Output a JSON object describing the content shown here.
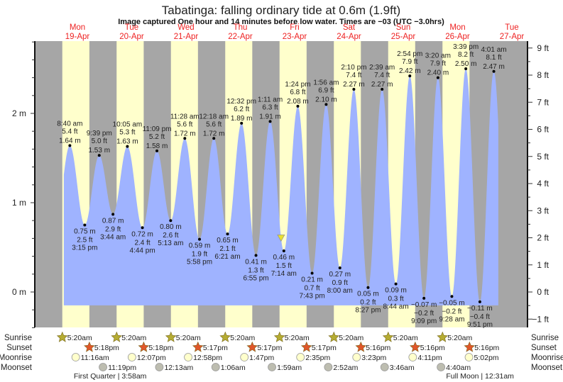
{
  "title": "Tabatinga: falling  ordinary tide at 0.6m (1.9ft)",
  "subtitle": "Image captured One hour and 14 minutes before low water. Times are −03 (UTC −3.0hrs)",
  "colors": {
    "night": "#a6a6a6",
    "day": "#ffffcc",
    "water": "#9fb3ff",
    "day_label": "#ee2222",
    "sunrise_icon": "#b5ac32",
    "sunset_icon": "#e0562a",
    "moonrise_icon": "#ffffcc",
    "moonset_icon": "#bdbdb0",
    "now_marker": "#e8e030"
  },
  "chart_data": {
    "type": "area",
    "title": "Tabatinga: falling  ordinary tide at 0.6m (1.9ft)",
    "days": [
      {
        "weekday": "Mon",
        "date": "19-Apr"
      },
      {
        "weekday": "Tue",
        "date": "20-Apr"
      },
      {
        "weekday": "Wed",
        "date": "21-Apr"
      },
      {
        "weekday": "Thu",
        "date": "22-Apr"
      },
      {
        "weekday": "Fri",
        "date": "23-Apr"
      },
      {
        "weekday": "Sat",
        "date": "24-Apr"
      },
      {
        "weekday": "Sun",
        "date": "25-Apr"
      },
      {
        "weekday": "Mon",
        "date": "26-Apr"
      },
      {
        "weekday": "Tue",
        "date": "27-Apr"
      }
    ],
    "ylim_m": [
      -0.4,
      2.8
    ],
    "left_axis": {
      "unit": "m",
      "ticks": [
        {
          "v": 0,
          "label": "0 m"
        },
        {
          "v": 1,
          "label": "1 m"
        },
        {
          "v": 2,
          "label": "2 m"
        }
      ]
    },
    "right_axis": {
      "unit": "ft",
      "ticks": [
        {
          "v": -1,
          "label": "−1 ft"
        },
        {
          "v": 0,
          "label": "0 ft"
        },
        {
          "v": 1,
          "label": "1 ft"
        },
        {
          "v": 2,
          "label": "2 ft"
        },
        {
          "v": 3,
          "label": "3 ft"
        },
        {
          "v": 4,
          "label": "4 ft"
        },
        {
          "v": 5,
          "label": "5 ft"
        },
        {
          "v": 6,
          "label": "6 ft"
        },
        {
          "v": 7,
          "label": "7 ft"
        },
        {
          "v": 8,
          "label": "8 ft"
        },
        {
          "v": 9,
          "label": "9 ft"
        }
      ]
    },
    "tide_start": {
      "date": "19-Apr",
      "time": "6:00 am"
    },
    "tide_end": {
      "date": "27-Apr",
      "time": "6:00 am"
    },
    "current": {
      "date": "23-Apr",
      "time": "6:00 am",
      "height_m": 0.6
    },
    "extremes": [
      {
        "type": "high",
        "date": "19-Apr",
        "time": "8:40 am",
        "height_m": 1.64,
        "m_label": "1.64 m",
        "ft_label": "5.4 ft"
      },
      {
        "type": "low",
        "date": "19-Apr",
        "time": "3:15 pm",
        "height_m": 0.75,
        "m_label": "0.75 m",
        "ft_label": "2.5 ft"
      },
      {
        "type": "high",
        "date": "19-Apr",
        "time": "9:39 pm",
        "height_m": 1.53,
        "m_label": "1.53 m",
        "ft_label": "5.0 ft"
      },
      {
        "type": "low",
        "date": "20-Apr",
        "time": "3:44 am",
        "height_m": 0.87,
        "m_label": "0.87 m",
        "ft_label": "2.9 ft"
      },
      {
        "type": "high",
        "date": "20-Apr",
        "time": "10:05 am",
        "height_m": 1.63,
        "m_label": "1.63 m",
        "ft_label": "5.3 ft"
      },
      {
        "type": "low",
        "date": "20-Apr",
        "time": "4:44 pm",
        "height_m": 0.72,
        "m_label": "0.72 m",
        "ft_label": "2.4 ft"
      },
      {
        "type": "high",
        "date": "20-Apr",
        "time": "11:09 pm",
        "height_m": 1.58,
        "m_label": "1.58 m",
        "ft_label": "5.2 ft"
      },
      {
        "type": "low",
        "date": "21-Apr",
        "time": "5:13 am",
        "height_m": 0.8,
        "m_label": "0.80 m",
        "ft_label": "2.6 ft"
      },
      {
        "type": "high",
        "date": "21-Apr",
        "time": "11:28 am",
        "height_m": 1.72,
        "m_label": "1.72 m",
        "ft_label": "5.6 ft"
      },
      {
        "type": "low",
        "date": "21-Apr",
        "time": "5:58 pm",
        "height_m": 0.59,
        "m_label": "0.59 m",
        "ft_label": "1.9 ft"
      },
      {
        "type": "high",
        "date": "22-Apr",
        "time": "12:18 am",
        "height_m": 1.72,
        "m_label": "1.72 m",
        "ft_label": "5.6 ft"
      },
      {
        "type": "low",
        "date": "22-Apr",
        "time": "6:21 am",
        "height_m": 0.65,
        "m_label": "0.65 m",
        "ft_label": "2.1 ft"
      },
      {
        "type": "high",
        "date": "22-Apr",
        "time": "12:32 pm",
        "height_m": 1.89,
        "m_label": "1.89 m",
        "ft_label": "6.2 ft"
      },
      {
        "type": "low",
        "date": "22-Apr",
        "time": "6:55 pm",
        "height_m": 0.41,
        "m_label": "0.41 m",
        "ft_label": "1.3 ft"
      },
      {
        "type": "high",
        "date": "23-Apr",
        "time": "1:11 am",
        "height_m": 1.91,
        "m_label": "1.91 m",
        "ft_label": "6.3 ft"
      },
      {
        "type": "low",
        "date": "23-Apr",
        "time": "7:14 am",
        "height_m": 0.46,
        "m_label": "0.46 m",
        "ft_label": "1.5 ft"
      },
      {
        "type": "high",
        "date": "23-Apr",
        "time": "1:24 pm",
        "height_m": 2.08,
        "m_label": "2.08 m",
        "ft_label": "6.8 ft"
      },
      {
        "type": "low",
        "date": "23-Apr",
        "time": "7:43 pm",
        "height_m": 0.21,
        "m_label": "0.21 m",
        "ft_label": "0.7 ft"
      },
      {
        "type": "high",
        "date": "24-Apr",
        "time": "1:56 am",
        "height_m": 2.1,
        "m_label": "2.10 m",
        "ft_label": "6.9 ft"
      },
      {
        "type": "low",
        "date": "24-Apr",
        "time": "8:00 am",
        "height_m": 0.27,
        "m_label": "0.27 m",
        "ft_label": "0.9 ft"
      },
      {
        "type": "high",
        "date": "24-Apr",
        "time": "2:10 pm",
        "height_m": 2.27,
        "m_label": "2.27 m",
        "ft_label": "7.4 ft"
      },
      {
        "type": "low",
        "date": "24-Apr",
        "time": "8:27 pm",
        "height_m": 0.05,
        "m_label": "0.05 m",
        "ft_label": "0.2 ft"
      },
      {
        "type": "high",
        "date": "25-Apr",
        "time": "2:39 am",
        "height_m": 2.27,
        "m_label": "2.27 m",
        "ft_label": "7.4 ft"
      },
      {
        "type": "low",
        "date": "25-Apr",
        "time": "8:44 am",
        "height_m": 0.09,
        "m_label": "0.09 m",
        "ft_label": "0.3 ft"
      },
      {
        "type": "high",
        "date": "25-Apr",
        "time": "2:54 pm",
        "height_m": 2.42,
        "m_label": "2.42 m",
        "ft_label": "7.9 ft"
      },
      {
        "type": "low",
        "date": "25-Apr",
        "time": "9:09 pm",
        "height_m": -0.07,
        "m_label": "−0.07 m",
        "ft_label": "−0.2 ft"
      },
      {
        "type": "high",
        "date": "26-Apr",
        "time": "3:20 am",
        "height_m": 2.4,
        "m_label": "2.40 m",
        "ft_label": "7.9 ft"
      },
      {
        "type": "low",
        "date": "26-Apr",
        "time": "9:28 am",
        "height_m": -0.05,
        "m_label": "−0.05 m",
        "ft_label": "−0.2 ft"
      },
      {
        "type": "high",
        "date": "26-Apr",
        "time": "3:39 pm",
        "height_m": 2.5,
        "m_label": "2.50 m",
        "ft_label": "8.2 ft"
      },
      {
        "type": "low",
        "date": "26-Apr",
        "time": "9:51 pm",
        "height_m": -0.11,
        "m_label": "−0.11 m",
        "ft_label": "−0.4 ft"
      },
      {
        "type": "high",
        "date": "27-Apr",
        "time": "4:01 am",
        "height_m": 2.47,
        "m_label": "2.47 m",
        "ft_label": "8.1 ft"
      }
    ]
  },
  "astro": {
    "row_labels": {
      "sunrise": "Sunrise",
      "sunset": "Sunset",
      "moonrise": "Moonrise",
      "moonset": "Moonset"
    },
    "sunrise": [
      {
        "date": "19-Apr",
        "time": "5:20am"
      },
      {
        "date": "20-Apr",
        "time": "5:20am"
      },
      {
        "date": "21-Apr",
        "time": "5:20am"
      },
      {
        "date": "22-Apr",
        "time": "5:20am"
      },
      {
        "date": "23-Apr",
        "time": "5:20am"
      },
      {
        "date": "24-Apr",
        "time": "5:20am"
      },
      {
        "date": "25-Apr",
        "time": "5:20am"
      },
      {
        "date": "26-Apr",
        "time": "5:20am"
      }
    ],
    "sunset": [
      {
        "date": "19-Apr",
        "time": "5:18pm"
      },
      {
        "date": "20-Apr",
        "time": "5:18pm"
      },
      {
        "date": "21-Apr",
        "time": "5:17pm"
      },
      {
        "date": "22-Apr",
        "time": "5:17pm"
      },
      {
        "date": "23-Apr",
        "time": "5:17pm"
      },
      {
        "date": "24-Apr",
        "time": "5:16pm"
      },
      {
        "date": "25-Apr",
        "time": "5:16pm"
      },
      {
        "date": "26-Apr",
        "time": "5:16pm"
      }
    ],
    "moonrise": [
      {
        "date": "19-Apr",
        "time": "11:16am"
      },
      {
        "date": "20-Apr",
        "time": "12:07pm"
      },
      {
        "date": "21-Apr",
        "time": "12:58pm"
      },
      {
        "date": "22-Apr",
        "time": "1:47pm"
      },
      {
        "date": "23-Apr",
        "time": "2:35pm"
      },
      {
        "date": "24-Apr",
        "time": "3:23pm"
      },
      {
        "date": "25-Apr",
        "time": "4:11pm"
      },
      {
        "date": "26-Apr",
        "time": "5:02pm"
      }
    ],
    "moonset": [
      {
        "date": "19-Apr",
        "time": "11:19pm"
      },
      {
        "date": "21-Apr",
        "time": "12:13am"
      },
      {
        "date": "22-Apr",
        "time": "1:06am"
      },
      {
        "date": "23-Apr",
        "time": "1:59am"
      },
      {
        "date": "24-Apr",
        "time": "2:52am"
      },
      {
        "date": "25-Apr",
        "time": "3:46am"
      },
      {
        "date": "26-Apr",
        "time": "4:40am"
      }
    ],
    "moon_phases": [
      {
        "date": "20-Apr",
        "time": "3:58am",
        "name": "First Quarter",
        "label": "First Quarter | 3:58am"
      },
      {
        "date": "27-Apr",
        "time": "12:31am",
        "name": "Full Moon",
        "label": "Full Moon | 12:31am"
      }
    ]
  }
}
